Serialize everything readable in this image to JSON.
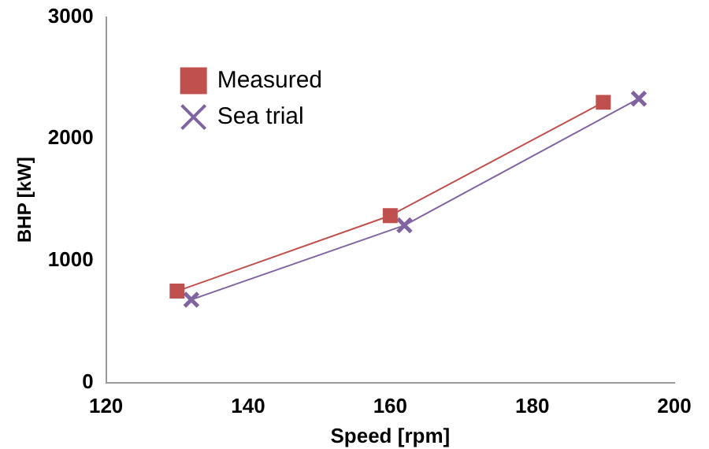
{
  "chart_data": {
    "type": "line",
    "xlabel": "Speed [rpm]",
    "ylabel": "BHP [kW]",
    "xlim": [
      120,
      200
    ],
    "xticks": [
      120,
      140,
      160,
      180,
      200
    ],
    "ylim": [
      0,
      3000
    ],
    "yticks": [
      0,
      1000,
      2000,
      3000
    ],
    "grid": false,
    "legend": "top left",
    "series": [
      {
        "name": "Measured",
        "color": "#c0504d",
        "marker": "square",
        "x": [
          130,
          160,
          190
        ],
        "values": [
          750,
          1370,
          2300
        ]
      },
      {
        "name": "Sea trial",
        "color": "#8064a2",
        "marker": "cross",
        "x": [
          132,
          162,
          195
        ],
        "values": [
          680,
          1290,
          2330
        ]
      }
    ]
  }
}
